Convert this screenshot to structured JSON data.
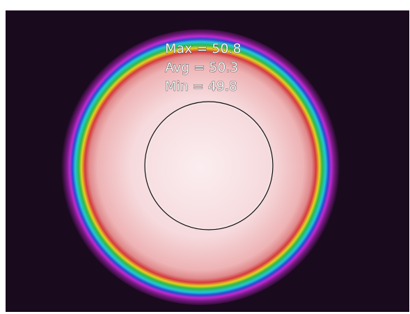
{
  "readings": [
    {
      "label": "Max = 50.8"
    },
    {
      "label": "Avg = 50.3"
    },
    {
      "label": "Min = 49.8"
    }
  ]
}
